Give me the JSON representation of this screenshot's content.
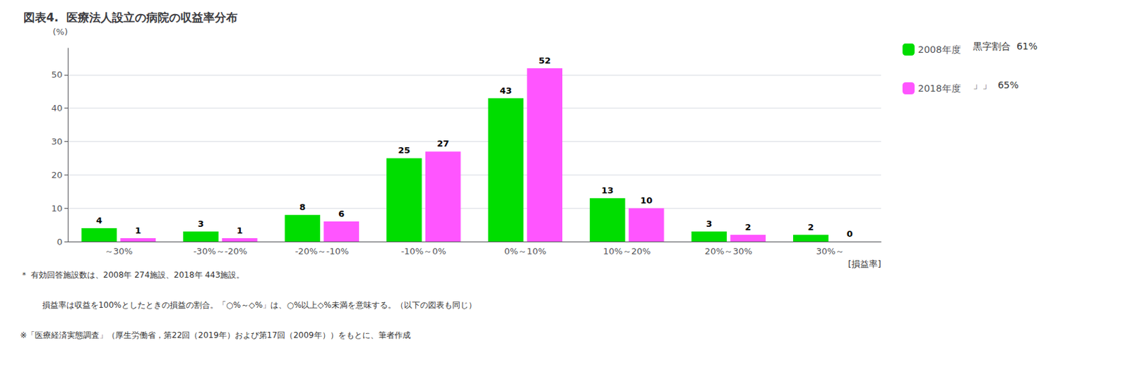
{
  "chart_data": {
    "type": "bar",
    "title": "図表4.  医療法人設立の病院の収益率分布",
    "categories": [
      "～30%",
      "-30%～-20%",
      "-20%～-10%",
      "-10%～0%",
      "0%～10%",
      "10%～20%",
      "20%～30%",
      "30%～"
    ],
    "series": [
      {
        "name": "2008年度",
        "color": "#00DD00",
        "values": [
          4,
          3,
          8,
          25,
          43,
          13,
          3,
          2
        ]
      },
      {
        "name": "2018年度",
        "color": "#FF55FF",
        "values": [
          1,
          1,
          6,
          27,
          52,
          10,
          2,
          0
        ]
      }
    ],
    "y_label": "(%)",
    "x_label": "[損益率]",
    "ylim": [
      0,
      58
    ],
    "yticks": [
      0,
      10,
      20,
      30,
      40,
      50
    ],
    "grid": true,
    "data_labels": true,
    "legend": "upper right",
    "annotations": [
      "黒字割合  61%",
      "」」  65%"
    ],
    "footnotes": [
      "＊ 有効回答施設数は、2008年 274施設、2018年 443施設。",
      "  損益率は収益を100%としたときの損益の割合。「○%～◇%」は、○%以上◇%未満を意味する。（以下の図表も同じ）",
      "※「医療経済実態調査」（厚生労働省，第22回（2019年）および第17回（2009年））をもとに、筆者作成"
    ]
  }
}
